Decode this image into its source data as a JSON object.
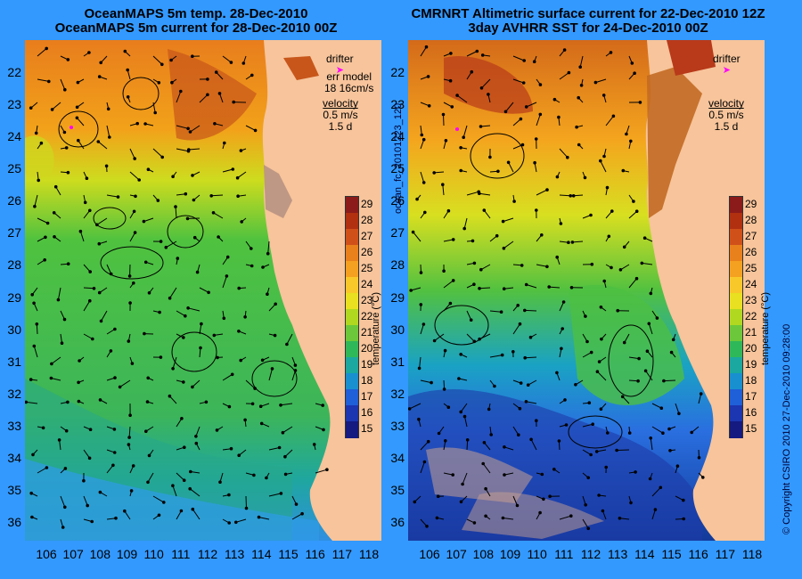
{
  "left": {
    "title_line1": "OceanMAPS 5m temp. 28-Dec-2010",
    "title_line2": "OceanMAPS 5m current for 28-Dec-2010 00Z",
    "drifter_label": "drifter",
    "err_line1": "err model",
    "err_line2": "18 16cm/s",
    "velocity_label": "velocity",
    "velocity_value": "0.5 m/s",
    "velocity_days": "1.5 d"
  },
  "right": {
    "title_line1": "CMRNRT Altimetric surface current for 22-Dec-2010 12Z",
    "title_line2": "3day AVHRR SST for 24-Dec-2010 00Z",
    "drifter_label": "drifter",
    "velocity_label": "velocity",
    "velocity_value": "0.5 m/s",
    "velocity_days": "1.5 d"
  },
  "y_ticks": [
    "22",
    "23",
    "24",
    "25",
    "26",
    "27",
    "28",
    "29",
    "30",
    "31",
    "32",
    "33",
    "34",
    "35",
    "36"
  ],
  "x_ticks": [
    "106",
    "107",
    "108",
    "109",
    "110",
    "111",
    "112",
    "113",
    "114",
    "115",
    "116",
    "117",
    "118"
  ],
  "colorbar": {
    "ticks": [
      "29",
      "28",
      "27",
      "26",
      "25",
      "24",
      "23",
      "22",
      "21",
      "20",
      "19",
      "18",
      "17",
      "16",
      "15"
    ],
    "label": "temperature (°C)"
  },
  "side_label_middle": "ocean_fc_20101223_120",
  "side_label_right": "© Copyright CSIRO 2010   27-Dec-2010 09:28:00",
  "colors": {
    "background": "#3399ff",
    "land": "#f7c49b",
    "drifter": "#ff00ff"
  }
}
